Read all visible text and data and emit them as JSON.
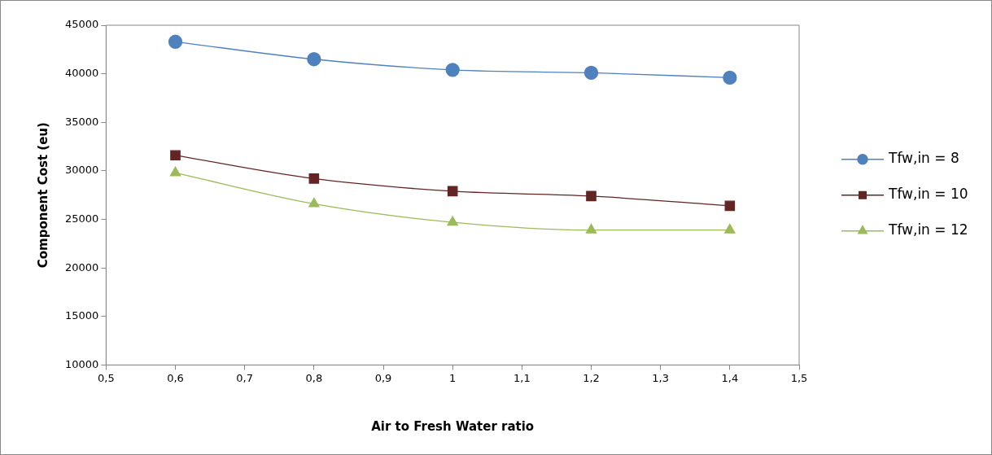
{
  "chart_data": {
    "type": "line",
    "xlabel": "Air to Fresh Water ratio",
    "ylabel": "Component Cost (eu)",
    "x": [
      0.6,
      0.8,
      1,
      1.2,
      1.4
    ],
    "xlim": [
      0.5,
      1.5
    ],
    "xticks": [
      {
        "value": 0.5,
        "label": "0,5"
      },
      {
        "value": 0.6,
        "label": "0,6"
      },
      {
        "value": 0.7,
        "label": "0,7"
      },
      {
        "value": 0.8,
        "label": "0,8"
      },
      {
        "value": 0.9,
        "label": "0,9"
      },
      1,
      {
        "value": 1.1,
        "label": "1,1"
      },
      {
        "value": 1.2,
        "label": "1,2"
      },
      {
        "value": 1.3,
        "label": "1,3"
      },
      {
        "value": 1.4,
        "label": "1,4"
      },
      {
        "value": 1.5,
        "label": "1,5"
      }
    ],
    "ylim": [
      10000,
      45000
    ],
    "yticks": [
      10000,
      15000,
      20000,
      25000,
      30000,
      35000,
      40000,
      45000
    ],
    "grid": false,
    "legend": "right",
    "series": [
      {
        "name": "Tfw,in = 8",
        "color": "#4f81bd",
        "marker": "circle",
        "values": [
          43300,
          41500,
          40400,
          40100,
          39600
        ]
      },
      {
        "name": "Tfw,in = 10",
        "color": "#632523",
        "marker": "square",
        "values": [
          31600,
          29200,
          27900,
          27400,
          26400
        ]
      },
      {
        "name": "Tfw,in = 12",
        "color": "#9bbb59",
        "marker": "triangle",
        "values": [
          29800,
          26600,
          24700,
          23900,
          23900
        ]
      }
    ]
  }
}
